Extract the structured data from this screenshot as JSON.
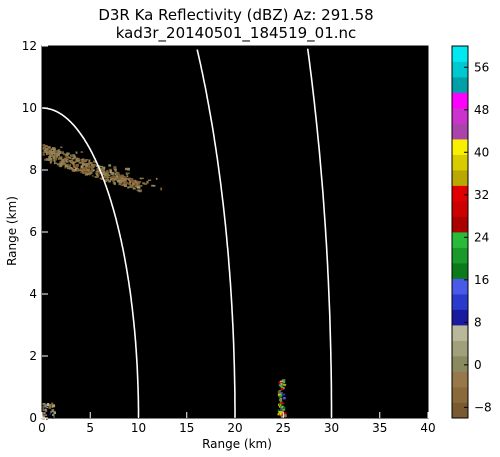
{
  "chart_data": {
    "type": "heatmap",
    "title": "D3R Ka Reflectivity (dBZ) Az: 291.58",
    "subtitle": "kad3r_20140501_184519_01.nc",
    "xlabel": "Range (km)",
    "ylabel": "Range (km)",
    "xlim": [
      0,
      40
    ],
    "ylim": [
      0,
      12
    ],
    "x_ticks": [
      0,
      5,
      10,
      15,
      20,
      25,
      30,
      35,
      40
    ],
    "y_ticks": [
      0,
      2,
      4,
      6,
      8,
      10,
      12
    ],
    "background_color": "#000000",
    "range_rings_km": [
      10,
      20,
      30
    ],
    "ring_color": "#ffffff",
    "colorbar": {
      "min": -10,
      "max": 60,
      "ticks": [
        -8,
        0,
        8,
        16,
        24,
        32,
        40,
        48,
        56
      ],
      "colors": [
        "#7a5a30",
        "#8a6a3a",
        "#98784a",
        "#8a8a60",
        "#a0a07a",
        "#b8b89a",
        "#1a1aa0",
        "#2a3acc",
        "#4a5ae8",
        "#0a7a1a",
        "#1a9a2a",
        "#2aba3a",
        "#aa0000",
        "#cc0000",
        "#e00000",
        "#b8a800",
        "#d8cc00",
        "#f8f000",
        "#aa44aa",
        "#cc33cc",
        "#ff00ff",
        "#00a0a8",
        "#00c8d0",
        "#00e8f0"
      ]
    },
    "echoes": [
      {
        "name": "cloud-band-upper-left",
        "x_range": [
          0,
          10
        ],
        "y_range": [
          7.2,
          8.8
        ],
        "dbz_range": [
          -10,
          2
        ]
      },
      {
        "name": "isolated-echo-at-25km",
        "x_range": [
          24.4,
          25.0
        ],
        "y_range": [
          0.1,
          1.3
        ],
        "dbz_range": [
          -8,
          40
        ]
      },
      {
        "name": "near-radar-clutter",
        "x_range": [
          0,
          1.2
        ],
        "y_range": [
          0,
          0.5
        ],
        "dbz_range": [
          -8,
          10
        ]
      }
    ]
  }
}
